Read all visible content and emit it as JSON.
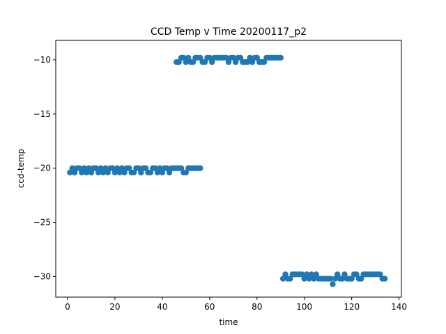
{
  "chart_data": {
    "type": "scatter",
    "title": "CCD Temp v Time 20200117_p2",
    "xlabel": "time",
    "ylabel": "ccd-temp",
    "xlim": [
      -5,
      141
    ],
    "ylim": [
      -31.9,
      -8.2
    ],
    "xticks": [
      0,
      20,
      40,
      60,
      80,
      100,
      120,
      140
    ],
    "yticks": [
      -10,
      -15,
      -20,
      -25,
      -30
    ],
    "grid": false,
    "point_color": "#1f77b4",
    "series": [
      {
        "points": [
          [
            1,
            -20.4
          ],
          [
            2,
            -20.0
          ],
          [
            3,
            -20.4
          ],
          [
            4,
            -20.0
          ],
          [
            5,
            -20.0
          ],
          [
            6,
            -20.4
          ],
          [
            7,
            -20.0
          ],
          [
            8,
            -20.4
          ],
          [
            9,
            -20.0
          ],
          [
            10,
            -20.4
          ],
          [
            11,
            -20.0
          ],
          [
            12,
            -20.0
          ],
          [
            13,
            -20.4
          ],
          [
            14,
            -20.0
          ],
          [
            15,
            -20.4
          ],
          [
            16,
            -20.0
          ],
          [
            17,
            -20.4
          ],
          [
            18,
            -20.0
          ],
          [
            19,
            -20.0
          ],
          [
            20,
            -20.4
          ],
          [
            21,
            -20.0
          ],
          [
            22,
            -20.4
          ],
          [
            23,
            -20.0
          ],
          [
            24,
            -20.4
          ],
          [
            25,
            -20.0
          ],
          [
            26,
            -20.0
          ],
          [
            27,
            -20.4
          ],
          [
            28,
            -20.4
          ],
          [
            29,
            -20.0
          ],
          [
            30,
            -20.0
          ],
          [
            31,
            -20.4
          ],
          [
            32,
            -20.0
          ],
          [
            33,
            -20.0
          ],
          [
            34,
            -20.4
          ],
          [
            35,
            -20.4
          ],
          [
            36,
            -20.0
          ],
          [
            37,
            -20.0
          ],
          [
            38,
            -20.4
          ],
          [
            39,
            -20.0
          ],
          [
            40,
            -20.4
          ],
          [
            41,
            -20.0
          ],
          [
            42,
            -20.0
          ],
          [
            43,
            -20.4
          ],
          [
            44,
            -20.0
          ],
          [
            45,
            -20.0
          ],
          [
            46,
            -20.0
          ],
          [
            47,
            -20.0
          ],
          [
            48,
            -20.0
          ],
          [
            49,
            -20.4
          ],
          [
            50,
            -20.4
          ],
          [
            51,
            -20.0
          ],
          [
            52,
            -20.0
          ],
          [
            53,
            -20.0
          ],
          [
            54,
            -20.0
          ],
          [
            55,
            -20.0
          ],
          [
            56,
            -20.0
          ],
          [
            46,
            -10.2
          ],
          [
            47,
            -10.2
          ],
          [
            48,
            -9.8
          ],
          [
            49,
            -9.8
          ],
          [
            50,
            -10.2
          ],
          [
            51,
            -9.8
          ],
          [
            52,
            -10.2
          ],
          [
            53,
            -10.2
          ],
          [
            54,
            -9.8
          ],
          [
            55,
            -9.8
          ],
          [
            56,
            -9.8
          ],
          [
            57,
            -10.2
          ],
          [
            58,
            -10.2
          ],
          [
            59,
            -9.8
          ],
          [
            60,
            -9.8
          ],
          [
            61,
            -10.2
          ],
          [
            62,
            -9.8
          ],
          [
            63,
            -9.8
          ],
          [
            64,
            -9.8
          ],
          [
            65,
            -9.8
          ],
          [
            66,
            -9.8
          ],
          [
            67,
            -9.8
          ],
          [
            68,
            -10.2
          ],
          [
            69,
            -9.8
          ],
          [
            70,
            -9.8
          ],
          [
            71,
            -10.2
          ],
          [
            72,
            -9.8
          ],
          [
            73,
            -9.8
          ],
          [
            74,
            -10.2
          ],
          [
            75,
            -10.2
          ],
          [
            76,
            -10.2
          ],
          [
            77,
            -9.8
          ],
          [
            78,
            -10.2
          ],
          [
            79,
            -9.8
          ],
          [
            80,
            -9.8
          ],
          [
            81,
            -10.2
          ],
          [
            82,
            -10.2
          ],
          [
            83,
            -10.2
          ],
          [
            84,
            -9.8
          ],
          [
            85,
            -9.8
          ],
          [
            86,
            -9.8
          ],
          [
            87,
            -9.8
          ],
          [
            88,
            -9.8
          ],
          [
            89,
            -9.8
          ],
          [
            90,
            -9.8
          ],
          [
            91,
            -30.2
          ],
          [
            92,
            -29.8
          ],
          [
            93,
            -30.2
          ],
          [
            94,
            -30.2
          ],
          [
            95,
            -29.8
          ],
          [
            96,
            -29.8
          ],
          [
            97,
            -29.8
          ],
          [
            98,
            -29.8
          ],
          [
            99,
            -29.8
          ],
          [
            100,
            -30.2
          ],
          [
            101,
            -29.8
          ],
          [
            102,
            -30.2
          ],
          [
            103,
            -29.8
          ],
          [
            104,
            -30.2
          ],
          [
            105,
            -29.8
          ],
          [
            106,
            -30.2
          ],
          [
            107,
            -30.2
          ],
          [
            108,
            -30.2
          ],
          [
            109,
            -30.2
          ],
          [
            110,
            -30.2
          ],
          [
            111,
            -30.2
          ],
          [
            112,
            -30.7
          ],
          [
            113,
            -30.2
          ],
          [
            114,
            -29.8
          ],
          [
            115,
            -30.2
          ],
          [
            116,
            -30.2
          ],
          [
            117,
            -29.8
          ],
          [
            118,
            -30.2
          ],
          [
            119,
            -30.2
          ],
          [
            120,
            -30.2
          ],
          [
            121,
            -29.8
          ],
          [
            122,
            -29.8
          ],
          [
            123,
            -30.2
          ],
          [
            124,
            -30.2
          ],
          [
            125,
            -29.8
          ],
          [
            126,
            -29.8
          ],
          [
            127,
            -29.8
          ],
          [
            128,
            -29.8
          ],
          [
            129,
            -29.8
          ],
          [
            130,
            -29.8
          ],
          [
            131,
            -29.8
          ],
          [
            132,
            -29.8
          ],
          [
            133,
            -30.2
          ],
          [
            134,
            -30.2
          ]
        ]
      }
    ]
  }
}
